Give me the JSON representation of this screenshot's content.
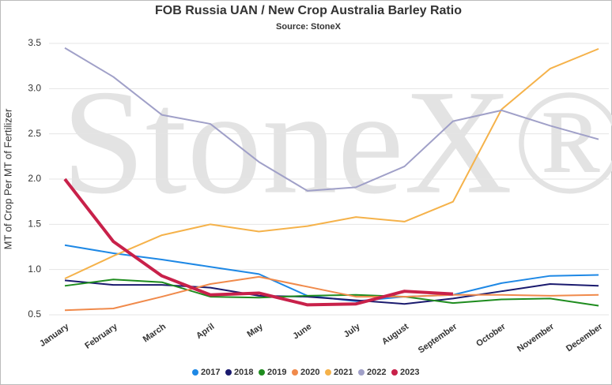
{
  "chart_data": {
    "type": "line",
    "title": "FOB Russia UAN / New Crop Australia Barley Ratio",
    "subtitle": "Source: StoneX",
    "watermark": "StoneX®",
    "y_label": "MT of Crop Per MT of Fertilizer",
    "categories": [
      "January",
      "February",
      "March",
      "April",
      "May",
      "June",
      "July",
      "August",
      "September",
      "October",
      "November",
      "December"
    ],
    "ylim": [
      0.5,
      3.5
    ],
    "yticks": [
      0.5,
      {
        "value": 1,
        "label": "1.0"
      },
      1.5,
      {
        "value": 2,
        "label": "2.0"
      },
      2.5,
      {
        "value": 3,
        "label": "3.0"
      },
      3.5
    ],
    "grid": true,
    "legend": "bottom",
    "series": [
      {
        "name": "2017",
        "color": "#1e88e5",
        "values": [
          1.27,
          1.18,
          1.11,
          1.03,
          0.95,
          0.71,
          0.65,
          0.7,
          0.72,
          0.85,
          0.93,
          0.94
        ]
      },
      {
        "name": "2018",
        "color": "#1a1a6e",
        "values": [
          0.88,
          0.83,
          0.83,
          0.8,
          0.71,
          0.7,
          0.66,
          0.62,
          0.68,
          0.76,
          0.84,
          0.82
        ]
      },
      {
        "name": "2019",
        "color": "#1e8c1e",
        "values": [
          0.82,
          0.89,
          0.86,
          0.7,
          0.69,
          0.71,
          0.72,
          0.7,
          0.63,
          0.67,
          0.68,
          0.6
        ]
      },
      {
        "name": "2020",
        "color": "#f08a4b",
        "values": [
          0.55,
          0.57,
          0.7,
          0.84,
          0.92,
          0.81,
          0.7,
          0.7,
          0.72,
          0.72,
          0.71,
          0.72
        ]
      },
      {
        "name": "2021",
        "color": "#f5b24a",
        "values": [
          0.9,
          1.15,
          1.38,
          1.5,
          1.42,
          1.48,
          1.58,
          1.53,
          1.75,
          2.77,
          3.22,
          3.44
        ]
      },
      {
        "name": "2022",
        "color": "#a0a0c8",
        "values": [
          3.45,
          3.13,
          2.71,
          2.61,
          2.19,
          1.87,
          1.91,
          2.14,
          2.64,
          2.76,
          2.59,
          2.44
        ]
      },
      {
        "name": "2023",
        "color": "#c8214a",
        "width": 4,
        "values": [
          2.0,
          1.31,
          0.93,
          0.72,
          0.74,
          0.61,
          0.62,
          0.76,
          0.73,
          null,
          null,
          null
        ]
      }
    ]
  }
}
